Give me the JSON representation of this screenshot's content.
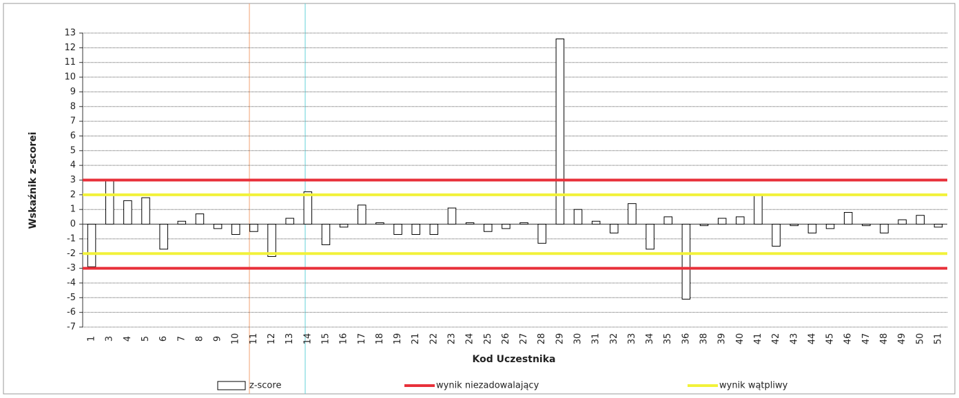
{
  "chart_data": {
    "type": "bar",
    "y_label": "Wskaźnik z-scorei",
    "x_label": "Kod Uczestnika",
    "categories": [
      "1",
      "3",
      "4",
      "5",
      "6",
      "7",
      "8",
      "9",
      "10",
      "11",
      "12",
      "13",
      "14",
      "15",
      "16",
      "17",
      "18",
      "19",
      "21",
      "22",
      "23",
      "24",
      "25",
      "26",
      "27",
      "28",
      "29",
      "30",
      "31",
      "32",
      "33",
      "34",
      "35",
      "36",
      "38",
      "39",
      "40",
      "41",
      "42",
      "43",
      "44",
      "45",
      "46",
      "47",
      "48",
      "49",
      "50",
      "51"
    ],
    "series": [
      {
        "name": "z-score",
        "color": "#ffffff",
        "values": [
          -2.9,
          3.0,
          1.6,
          1.8,
          -1.7,
          0.2,
          0.7,
          -0.3,
          -0.7,
          -0.5,
          -2.2,
          0.4,
          2.2,
          -1.4,
          -0.2,
          1.3,
          0.1,
          -0.7,
          -0.7,
          -0.7,
          1.1,
          0.1,
          -0.5,
          -0.3,
          0.1,
          -1.3,
          12.6,
          1.0,
          0.2,
          -0.6,
          1.4,
          -1.7,
          0.5,
          -5.1,
          -0.1,
          0.4,
          0.5,
          2.0,
          -1.5,
          -0.1,
          -0.6,
          -0.3,
          0.8,
          -0.1,
          -0.6,
          0.3,
          0.6,
          -0.2
        ]
      },
      {
        "name": "wynik niezadowalający",
        "color": "#e8303a",
        "levels": [
          3,
          -3
        ]
      },
      {
        "name": "wynik wątpliwy",
        "color": "#f2f23a",
        "levels": [
          2,
          -2
        ]
      }
    ],
    "ylim": [
      -7,
      13
    ],
    "yticks": [
      -7,
      -6,
      -5,
      -4,
      -3,
      -2,
      -1,
      0,
      1,
      2,
      3,
      4,
      5,
      6,
      7,
      8,
      9,
      10,
      11,
      12,
      13
    ],
    "grid": true
  }
}
